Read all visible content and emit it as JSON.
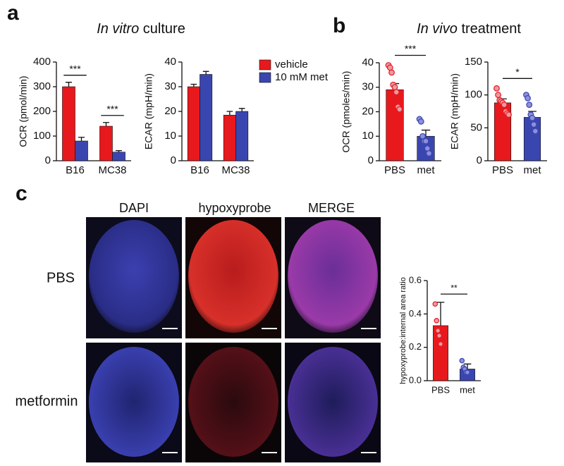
{
  "panels": [
    {
      "label": "a",
      "title_italic": "In vitro",
      "title": "culture"
    },
    {
      "label": "b",
      "title_italic": "In vivo",
      "title": "treatment"
    },
    {
      "label": "c",
      "columns": [
        "DAPI",
        "hypoxyprobe",
        "MERGE"
      ],
      "rows": [
        "PBS",
        "metformin"
      ]
    }
  ],
  "chart_data": [
    {
      "type": "bar",
      "ylabel": "OCR (pmol/min)",
      "categories": [
        "B16",
        "MC38"
      ],
      "series": [
        {
          "name": "vehicle",
          "color": "#e8191d",
          "values": [
            300,
            140
          ],
          "errors": [
            18,
            15
          ]
        },
        {
          "name": "10 mM met",
          "color": "#3a46b0",
          "values": [
            80,
            35
          ],
          "errors": [
            15,
            6
          ]
        }
      ],
      "ylim": [
        0,
        400
      ],
      "yticks": [
        0,
        100,
        200,
        300,
        400
      ],
      "annotations": [
        {
          "text": "***",
          "categories": [
            "B16"
          ]
        },
        {
          "text": "***",
          "categories": [
            "MC38"
          ]
        }
      ]
    },
    {
      "type": "bar",
      "ylabel": "ECAR (mpH/min)",
      "categories": [
        "B16",
        "MC38"
      ],
      "series": [
        {
          "name": "vehicle",
          "color": "#e8191d",
          "values": [
            30,
            18.5
          ],
          "errors": [
            1,
            1.5
          ]
        },
        {
          "name": "10 mM met",
          "color": "#3a46b0",
          "values": [
            35,
            20
          ],
          "errors": [
            1.2,
            1.2
          ]
        }
      ],
      "ylim": [
        0,
        40
      ],
      "yticks": [
        0,
        10,
        20,
        30,
        40
      ],
      "legend": "right"
    },
    {
      "type": "bar",
      "ylabel": "OCR (pmoles/min)",
      "categories": [
        "PBS",
        "met"
      ],
      "colors": [
        "#e8191d",
        "#3a46b0"
      ],
      "point_colors": [
        "#e89aa5",
        "#8c8fdc"
      ],
      "values": [
        29,
        10
      ],
      "errors": [
        2.5,
        2.5
      ],
      "points": [
        [
          39,
          38,
          36,
          31,
          30,
          28,
          22,
          21
        ],
        [
          17,
          16,
          10,
          8,
          8,
          5,
          3
        ]
      ],
      "ylim": [
        0,
        40
      ],
      "yticks": [
        0,
        10,
        20,
        30,
        40
      ],
      "annotations": [
        {
          "text": "***",
          "categories": [
            "PBS",
            "met"
          ]
        }
      ]
    },
    {
      "type": "bar",
      "ylabel": "ECAR (mpH/min)",
      "categories": [
        "PBS",
        "met"
      ],
      "colors": [
        "#e8191d",
        "#3a46b0"
      ],
      "point_colors": [
        "#e89aa5",
        "#8c8fdc"
      ],
      "values": [
        88,
        66
      ],
      "errors": [
        6,
        9
      ],
      "points": [
        [
          110,
          100,
          92,
          90,
          88,
          85,
          75,
          72,
          70
        ],
        [
          100,
          95,
          85,
          70,
          65,
          55,
          45
        ]
      ],
      "ylim": [
        0,
        150
      ],
      "yticks": [
        0,
        50,
        100,
        150
      ],
      "annotations": [
        {
          "text": "*",
          "categories": [
            "PBS",
            "met"
          ]
        }
      ]
    },
    {
      "type": "bar",
      "ylabel": "hypoxyprobe:internal area ratio",
      "categories": [
        "PBS",
        "met"
      ],
      "colors": [
        "#e8191d",
        "#3a46b0"
      ],
      "point_colors": [
        "#e89aa5",
        "#8c8fdc"
      ],
      "values": [
        0.33,
        0.07
      ],
      "errors": [
        0.14,
        0.03
      ],
      "points": [
        [
          0.46,
          0.36,
          0.3,
          0.27,
          0.22
        ],
        [
          0.12,
          0.08,
          0.07,
          0.05,
          0.05
        ]
      ],
      "ylim": [
        0,
        0.6
      ],
      "yticks": [
        {
          "value": 0,
          "label": "0.0"
        },
        0.2,
        0.4,
        0.6
      ],
      "annotations": [
        {
          "text": "**",
          "categories": [
            "PBS",
            "met"
          ]
        }
      ]
    }
  ]
}
